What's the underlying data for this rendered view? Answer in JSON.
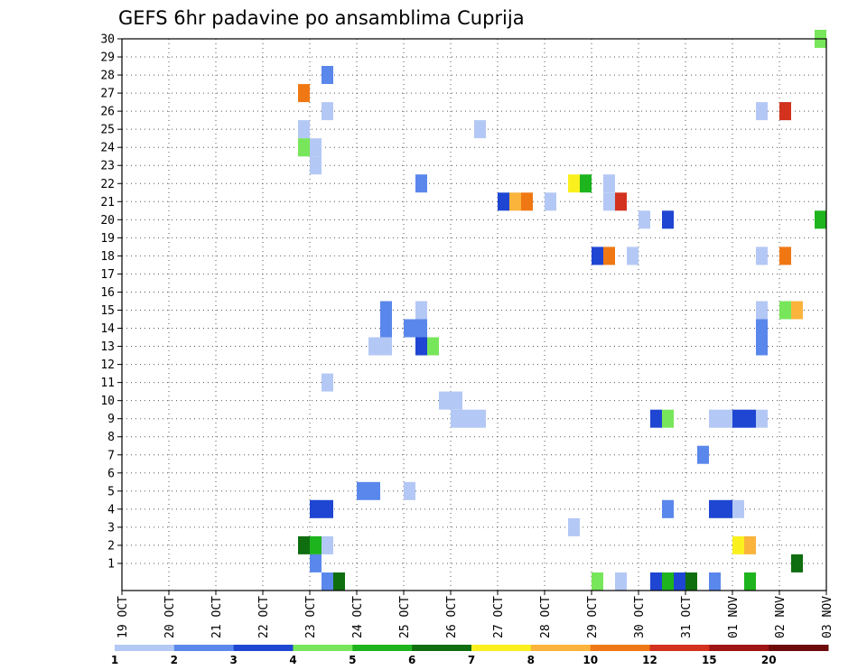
{
  "chart_data": {
    "type": "heatmap",
    "title": "GEFS 6hr padavine po ansamblima Cuprija",
    "xlabel": "",
    "ylabel": "",
    "x_ticks": [
      "19 OCT",
      "20 OCT",
      "21 OCT",
      "22 OCT",
      "23 OCT",
      "24 OCT",
      "25 OCT",
      "26 OCT",
      "27 OCT",
      "28 OCT",
      "29 OCT",
      "30 OCT",
      "31 OCT",
      "01 NOV",
      "02 NOV",
      "03 NOV"
    ],
    "y_ticks": [
      "1",
      "2",
      "3",
      "4",
      "5",
      "6",
      "7",
      "8",
      "9",
      "10",
      "11",
      "12",
      "13",
      "14",
      "15",
      "16",
      "17",
      "18",
      "19",
      "20",
      "21",
      "22",
      "23",
      "24",
      "25",
      "26",
      "27",
      "28",
      "29",
      "30"
    ],
    "xlim_days": [
      0,
      15
    ],
    "ylim_members": [
      0,
      30
    ],
    "legend": {
      "thresholds": [
        "1",
        "2",
        "3",
        "4",
        "5",
        "6",
        "7",
        "8",
        "10",
        "12",
        "15",
        "20"
      ],
      "colors": [
        "#b4c8f5",
        "#5a87eb",
        "#1e46d2",
        "#78e65a",
        "#1eb41e",
        "#0f6e0f",
        "#faf01e",
        "#fab43c",
        "#f07814",
        "#d2321e",
        "#a01414",
        "#6e0a0a"
      ]
    },
    "cells": [
      {
        "date": "23 OCT 06",
        "member": "24",
        "level": 1
      },
      {
        "date": "23 OCT 00",
        "member": "24",
        "level": 1
      },
      {
        "date": "23 OCT 00",
        "member": "25",
        "level": 1
      },
      {
        "date": "23 OCT 06",
        "member": "23",
        "level": 1
      },
      {
        "date": "23 OCT 12",
        "member": "26",
        "level": 1
      },
      {
        "date": "23 OCT 12",
        "member": "2",
        "level": 1
      },
      {
        "date": "23 OCT 06",
        "member": "4",
        "level": 1
      },
      {
        "date": "23 OCT 12",
        "member": "11",
        "level": 1
      },
      {
        "date": "23 OCT 18",
        "member": "0",
        "level": 1
      },
      {
        "date": "24 OCT 12",
        "member": "13",
        "level": 1
      },
      {
        "date": "24 OCT 18",
        "member": "13",
        "level": 1
      },
      {
        "date": "25 OCT 06",
        "member": "5",
        "level": 1
      },
      {
        "date": "25 OCT 12",
        "member": "15",
        "level": 1
      },
      {
        "date": "26 OCT 00",
        "member": "10",
        "level": 1
      },
      {
        "date": "26 OCT 06",
        "member": "10",
        "level": 1
      },
      {
        "date": "26 OCT 06",
        "member": "9",
        "level": 1
      },
      {
        "date": "26 OCT 12",
        "member": "9",
        "level": 1
      },
      {
        "date": "26 OCT 18",
        "member": "9",
        "level": 1
      },
      {
        "date": "26 OCT 18",
        "member": "25",
        "level": 1
      },
      {
        "date": "28 OCT 06",
        "member": "21",
        "level": 1
      },
      {
        "date": "28 OCT 18",
        "member": "3",
        "level": 1
      },
      {
        "date": "29 OCT 12",
        "member": "22",
        "level": 1
      },
      {
        "date": "29 OCT 12",
        "member": "21",
        "level": 1
      },
      {
        "date": "29 OCT 18",
        "member": "0",
        "level": 1
      },
      {
        "date": "30 OCT 00",
        "member": "18",
        "level": 1
      },
      {
        "date": "30 OCT 06",
        "member": "20",
        "level": 1
      },
      {
        "date": "31 OCT 18",
        "member": "9",
        "level": 1
      },
      {
        "date": "01 NOV 00",
        "member": "9",
        "level": 1
      },
      {
        "date": "01 NOV 06",
        "member": "4",
        "level": 1
      },
      {
        "date": "01 NOV 18",
        "member": "9",
        "level": 1
      },
      {
        "date": "01 NOV 18",
        "member": "26",
        "level": 1
      },
      {
        "date": "01 NOV 18",
        "member": "15",
        "level": 1
      },
      {
        "date": "01 NOV 18",
        "member": "18",
        "level": 1
      },
      {
        "date": "02 NOV 06",
        "member": "26",
        "level": 1
      },
      {
        "date": "02 NOV 12",
        "member": "1",
        "level": 1
      },
      {
        "date": "23 OCT 12",
        "member": "28",
        "level": 2
      },
      {
        "date": "25 OCT 12",
        "member": "22",
        "level": 2
      },
      {
        "date": "24 OCT 06",
        "member": "5",
        "level": 2
      },
      {
        "date": "24 OCT 12",
        "member": "5",
        "level": 2
      },
      {
        "date": "24 OCT 18",
        "member": "15",
        "level": 2
      },
      {
        "date": "24 OCT 18",
        "member": "14",
        "level": 2
      },
      {
        "date": "25 OCT 06",
        "member": "14",
        "level": 2
      },
      {
        "date": "25 OCT 12",
        "member": "14",
        "level": 2
      },
      {
        "date": "25 OCT 18",
        "member": "13",
        "level": 2
      },
      {
        "date": "23 OCT 06",
        "member": "1",
        "level": 2
      },
      {
        "date": "23 OCT 12",
        "member": "0",
        "level": 2
      },
      {
        "date": "30 OCT 18",
        "member": "4",
        "level": 2
      },
      {
        "date": "31 OCT 12",
        "member": "7",
        "level": 2
      },
      {
        "date": "31 OCT 06",
        "member": "0",
        "level": 2
      },
      {
        "date": "01 NOV 18",
        "member": "13",
        "level": 2
      },
      {
        "date": "01 NOV 18",
        "member": "14",
        "level": 2
      },
      {
        "date": "31 OCT 18",
        "member": "0",
        "level": 2
      },
      {
        "date": "23 OCT 06",
        "member": "4",
        "level": 3
      },
      {
        "date": "23 OCT 12",
        "member": "4",
        "level": 3
      },
      {
        "date": "25 OCT 12",
        "member": "13",
        "level": 3
      },
      {
        "date": "27 OCT 06",
        "member": "21",
        "level": 3
      },
      {
        "date": "29 OCT 06",
        "member": "18",
        "level": 3
      },
      {
        "date": "30 OCT 18",
        "member": "20",
        "level": 3
      },
      {
        "date": "30 OCT 12",
        "member": "9",
        "level": 3
      },
      {
        "date": "31 OCT 18",
        "member": "4",
        "level": 3
      },
      {
        "date": "01 NOV 00",
        "member": "4",
        "level": 3
      },
      {
        "date": "01 NOV 06",
        "member": "9",
        "level": 3
      },
      {
        "date": "01 NOV 12",
        "member": "9",
        "level": 3
      },
      {
        "date": "30 OCT 12",
        "member": "0",
        "level": 3
      },
      {
        "date": "31 OCT 00",
        "member": "0",
        "level": 3
      },
      {
        "date": "23 OCT 00",
        "member": "24",
        "level": 4
      },
      {
        "date": "25 OCT 18",
        "member": "13",
        "level": 4
      },
      {
        "date": "30 OCT 18",
        "member": "9",
        "level": 4
      },
      {
        "date": "29 OCT 06",
        "member": "0",
        "level": 4
      },
      {
        "date": "02 NOV 06",
        "member": "15",
        "level": 4
      },
      {
        "date": "03 NOV 00",
        "member": "30",
        "level": 4
      },
      {
        "date": "23 OCT 06",
        "member": "2",
        "level": 5
      },
      {
        "date": "29 OCT 00",
        "member": "22",
        "level": 5
      },
      {
        "date": "30 OCT 18",
        "member": "0",
        "level": 5
      },
      {
        "date": "01 NOV 12",
        "member": "0",
        "level": 5
      },
      {
        "date": "03 NOV 00",
        "member": "20",
        "level": 5
      },
      {
        "date": "23 OCT 00",
        "member": "2",
        "level": 6
      },
      {
        "date": "23 OCT 18",
        "member": "0",
        "level": 6
      },
      {
        "date": "02 NOV 12",
        "member": "1",
        "level": 6
      },
      {
        "date": "31 OCT 06",
        "member": "0",
        "level": 6
      },
      {
        "date": "28 OCT 18",
        "member": "22",
        "level": 7
      },
      {
        "date": "01 NOV 06",
        "member": "2",
        "level": 7
      },
      {
        "date": "27 OCT 12",
        "member": "21",
        "level": 8
      },
      {
        "date": "01 NOV 12",
        "member": "2",
        "level": 8
      },
      {
        "date": "02 NOV 12",
        "member": "15",
        "level": 8
      },
      {
        "date": "23 OCT 00",
        "member": "27",
        "level": 9
      },
      {
        "date": "27 OCT 18",
        "member": "21",
        "level": 9
      },
      {
        "date": "29 OCT 12",
        "member": "18",
        "level": 9
      },
      {
        "date": "02 NOV 06",
        "member": "18",
        "level": 9
      },
      {
        "date": "29 OCT 18",
        "member": "21",
        "level": 10
      },
      {
        "date": "02 NOV 06",
        "member": "26",
        "level": 10
      }
    ]
  }
}
